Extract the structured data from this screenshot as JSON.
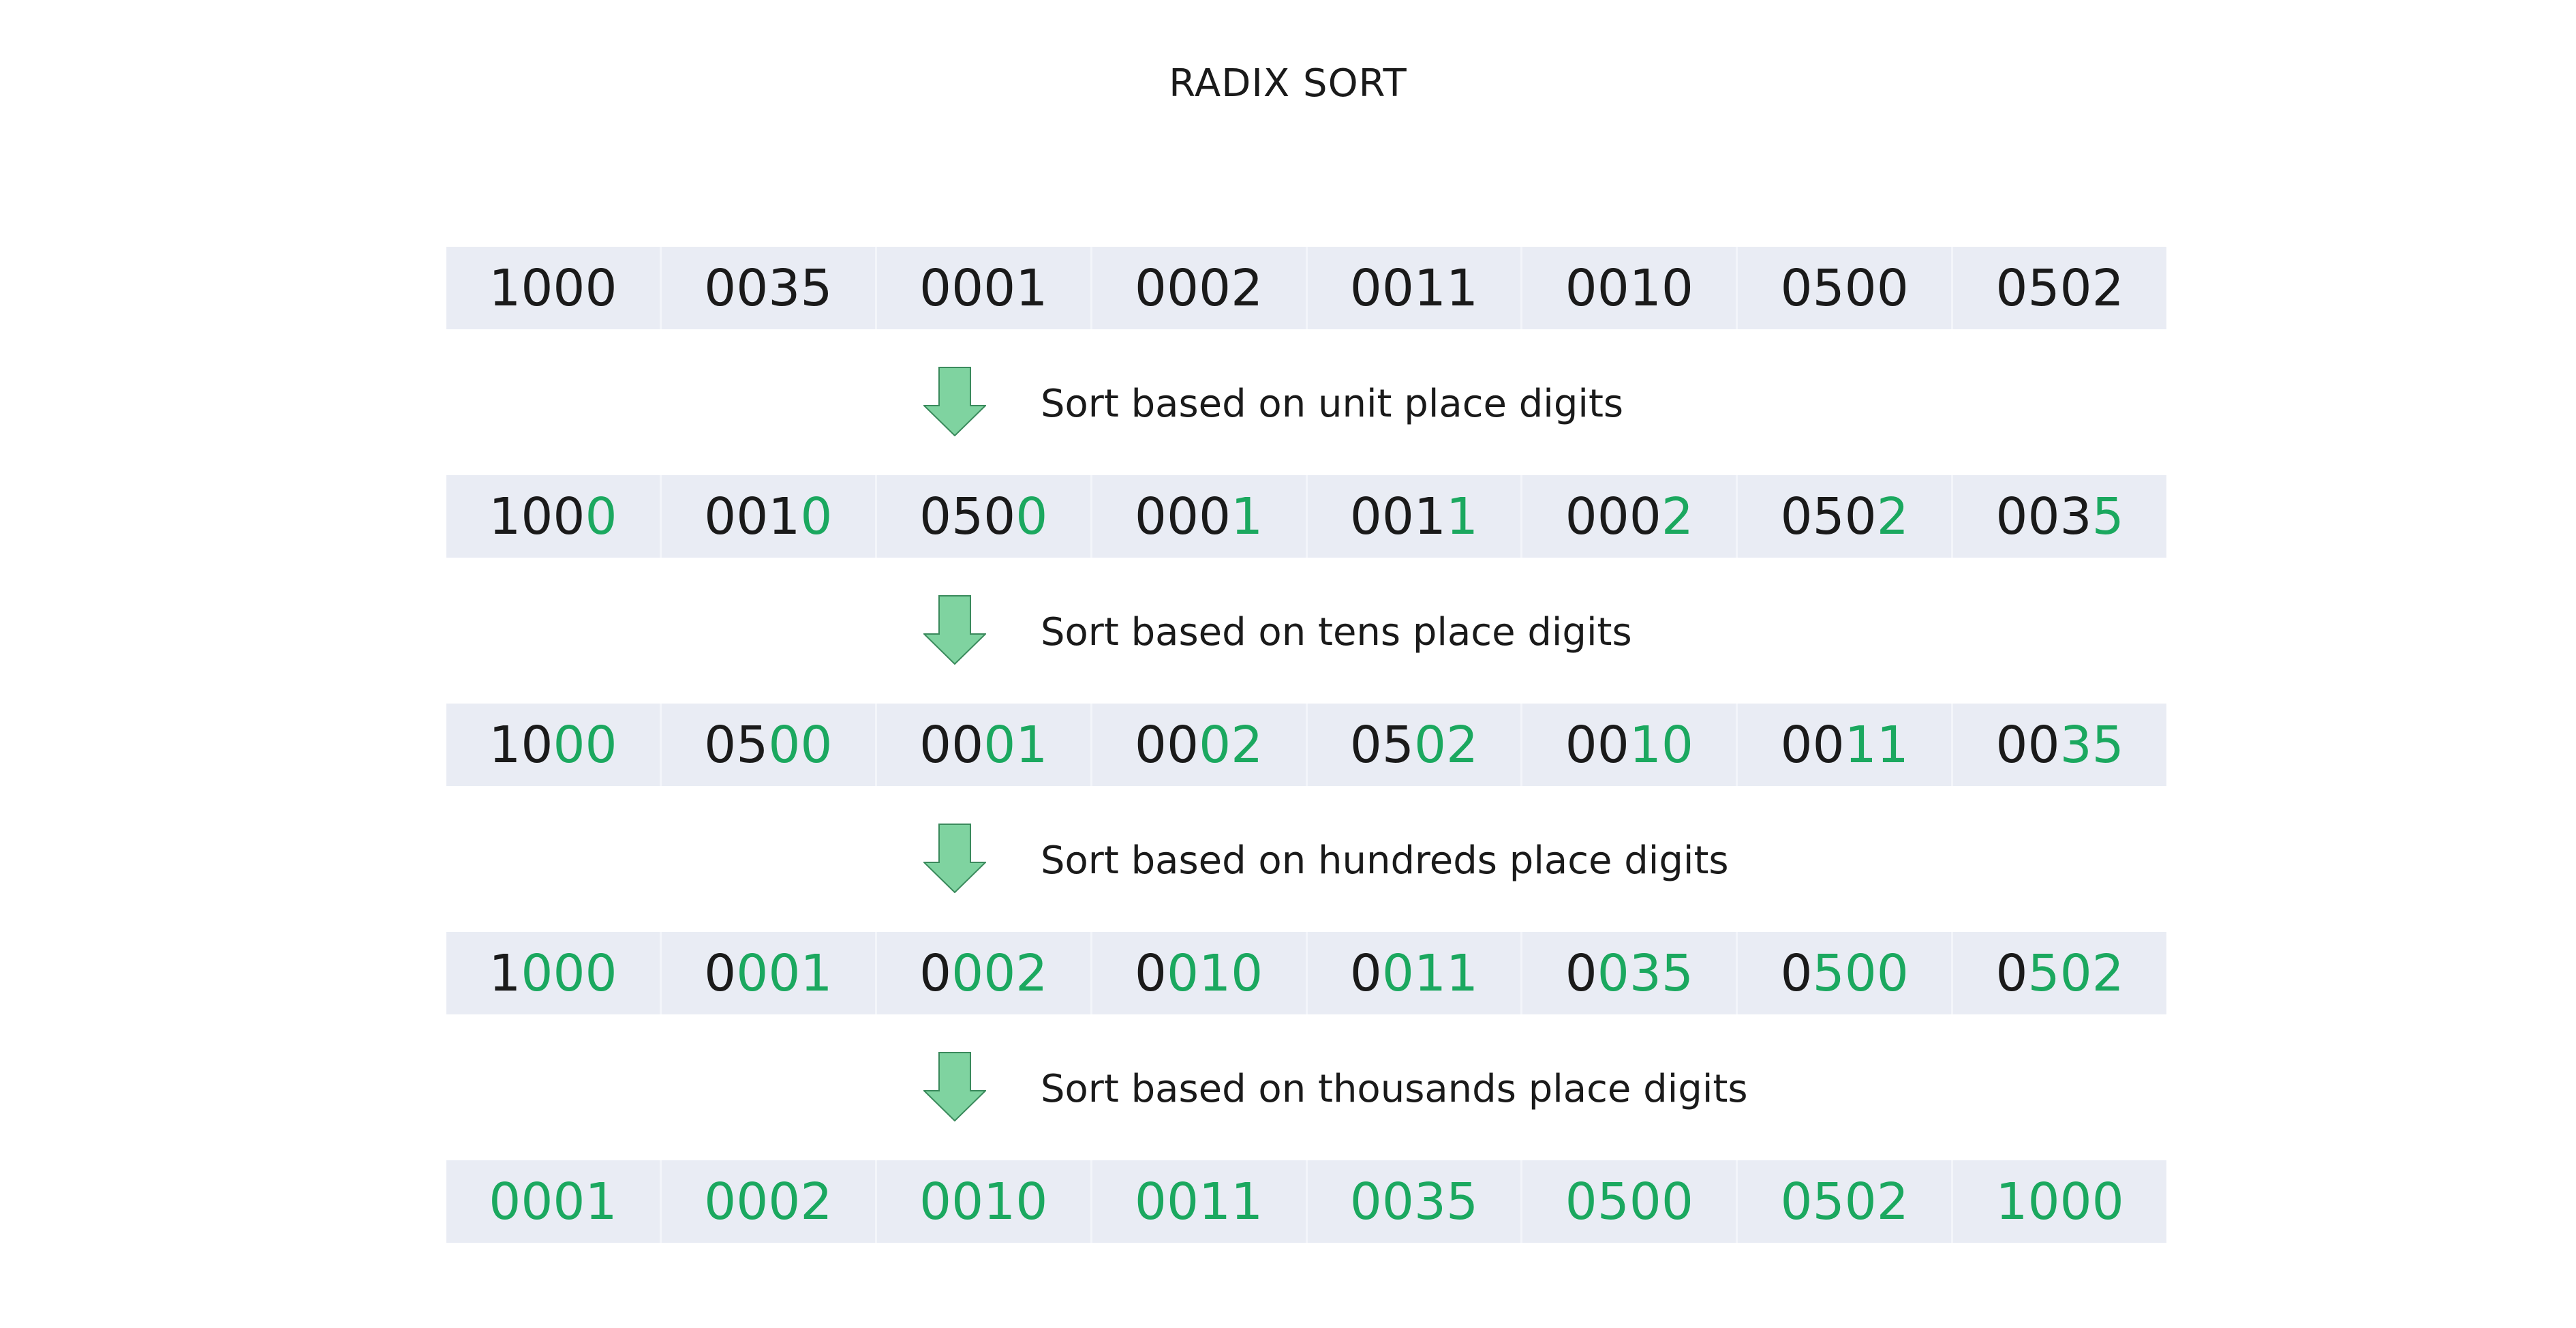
{
  "title": "RADIX SORT",
  "colors": {
    "highlight": "#1ba85f",
    "text": "#1a1a1a",
    "row_background": "#e9ecf4",
    "arrow_fill": "#7fd3a0",
    "arrow_stroke": "#3a8a5c"
  },
  "rows": [
    {
      "cells": [
        {
          "plain": "1000",
          "green": ""
        },
        {
          "plain": "0035",
          "green": ""
        },
        {
          "plain": "0001",
          "green": ""
        },
        {
          "plain": "0002",
          "green": ""
        },
        {
          "plain": "0011",
          "green": ""
        },
        {
          "plain": "0010",
          "green": ""
        },
        {
          "plain": "0500",
          "green": ""
        },
        {
          "plain": "0502",
          "green": ""
        }
      ]
    },
    {
      "cells": [
        {
          "plain": "100",
          "green": "0"
        },
        {
          "plain": "001",
          "green": "0"
        },
        {
          "plain": "050",
          "green": "0"
        },
        {
          "plain": "000",
          "green": "1"
        },
        {
          "plain": "001",
          "green": "1"
        },
        {
          "plain": "000",
          "green": "2"
        },
        {
          "plain": "050",
          "green": "2"
        },
        {
          "plain": "003",
          "green": "5"
        }
      ]
    },
    {
      "cells": [
        {
          "plain": "10",
          "green": "00"
        },
        {
          "plain": "05",
          "green": "00"
        },
        {
          "plain": "00",
          "green": "01"
        },
        {
          "plain": "00",
          "green": "02"
        },
        {
          "plain": "05",
          "green": "02"
        },
        {
          "plain": "00",
          "green": "10"
        },
        {
          "plain": "00",
          "green": "11"
        },
        {
          "plain": "00",
          "green": "35"
        }
      ]
    },
    {
      "cells": [
        {
          "plain": "1",
          "green": "000"
        },
        {
          "plain": "0",
          "green": "001"
        },
        {
          "plain": "0",
          "green": "002"
        },
        {
          "plain": "0",
          "green": "010"
        },
        {
          "plain": "0",
          "green": "011"
        },
        {
          "plain": "0",
          "green": "035"
        },
        {
          "plain": "0",
          "green": "500"
        },
        {
          "plain": "0",
          "green": "502"
        }
      ]
    },
    {
      "cells": [
        {
          "plain": "",
          "green": "0001"
        },
        {
          "plain": "",
          "green": "0002"
        },
        {
          "plain": "",
          "green": "0010"
        },
        {
          "plain": "",
          "green": "0011"
        },
        {
          "plain": "",
          "green": "0035"
        },
        {
          "plain": "",
          "green": "0500"
        },
        {
          "plain": "",
          "green": "0502"
        },
        {
          "plain": "",
          "green": "1000"
        }
      ]
    }
  ],
  "steps": [
    {
      "label": "Sort based on unit place digits"
    },
    {
      "label": "Sort based on tens place digits"
    },
    {
      "label": "Sort based on hundreds place digits"
    },
    {
      "label": "Sort based on thousands place digits"
    }
  ]
}
